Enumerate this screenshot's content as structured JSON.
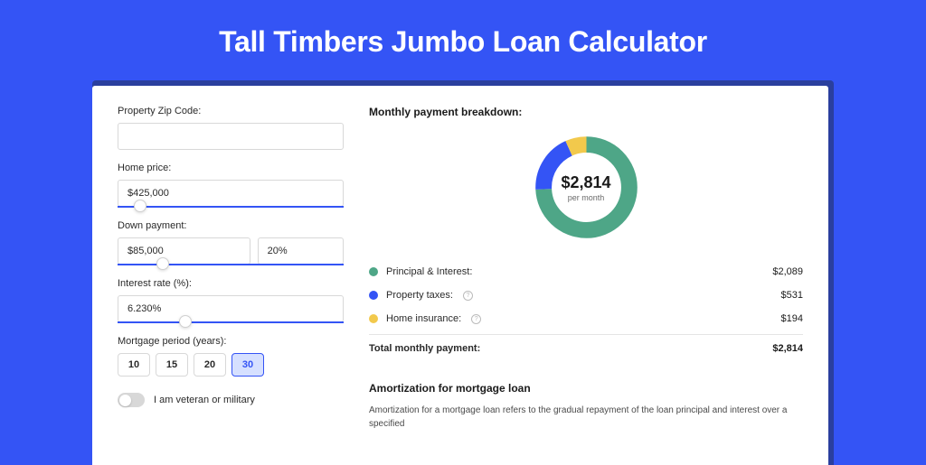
{
  "page": {
    "title": "Tall Timbers Jumbo Loan Calculator",
    "background_color": "#3454f5",
    "card_shadow_color": "#2a3f9e"
  },
  "form": {
    "zip": {
      "label": "Property Zip Code:",
      "value": ""
    },
    "home_price": {
      "label": "Home price:",
      "value": "$425,000",
      "slider_pct": 10
    },
    "down_payment": {
      "label": "Down payment:",
      "value": "$85,000",
      "pct": "20%",
      "slider_pct": 20
    },
    "interest": {
      "label": "Interest rate (%):",
      "value": "6.230%",
      "slider_pct": 30
    },
    "period": {
      "label": "Mortgage period (years):",
      "options": [
        "10",
        "15",
        "20",
        "30"
      ],
      "selected": "30"
    },
    "veteran": {
      "label": "I am veteran or military",
      "checked": false
    }
  },
  "breakdown": {
    "heading": "Monthly payment breakdown:",
    "donut": {
      "amount": "$2,814",
      "sub": "per month",
      "ring_width": 18,
      "segments": [
        {
          "name": "principal_interest",
          "value": 2089,
          "pct": 74.2,
          "color": "#4ea687"
        },
        {
          "name": "property_taxes",
          "value": 531,
          "pct": 18.9,
          "color": "#3454f5"
        },
        {
          "name": "home_insurance",
          "value": 194,
          "pct": 6.9,
          "color": "#f2c94c"
        }
      ]
    },
    "rows": [
      {
        "label": "Principal & Interest:",
        "value": "$2,089",
        "color": "#4ea687",
        "info": false
      },
      {
        "label": "Property taxes:",
        "value": "$531",
        "color": "#3454f5",
        "info": true
      },
      {
        "label": "Home insurance:",
        "value": "$194",
        "color": "#f2c94c",
        "info": true
      }
    ],
    "total": {
      "label": "Total monthly payment:",
      "value": "$2,814"
    }
  },
  "amort": {
    "heading": "Amortization for mortgage loan",
    "text": "Amortization for a mortgage loan refers to the gradual repayment of the loan principal and interest over a specified"
  }
}
